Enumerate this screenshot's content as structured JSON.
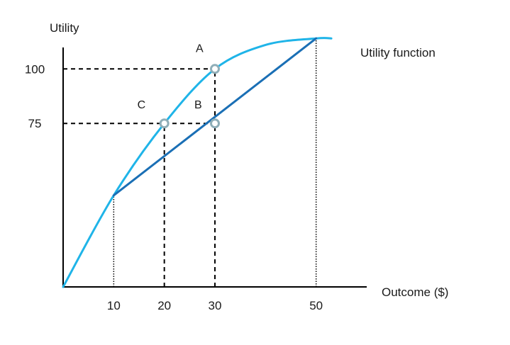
{
  "chart_data": {
    "type": "line",
    "title": "",
    "xlabel": "Outcome ($)",
    "ylabel": "Utility",
    "xlim": [
      0,
      60
    ],
    "ylim": [
      0,
      130
    ],
    "grid": false,
    "x_ticks": [
      {
        "value": 10,
        "label": "10"
      },
      {
        "value": 20,
        "label": "20"
      },
      {
        "value": 30,
        "label": "30"
      },
      {
        "value": 50,
        "label": "50"
      }
    ],
    "y_ticks": [
      {
        "value": 75,
        "label": "75"
      },
      {
        "value": 100,
        "label": "100"
      }
    ],
    "series": [
      {
        "name": "Utility function",
        "color": "#1fb4e8",
        "smooth": true,
        "x": [
          0,
          10,
          20,
          30,
          40,
          50,
          53
        ],
        "y": [
          0,
          42,
          75,
          100,
          111,
          114,
          114
        ]
      },
      {
        "name": "",
        "color": "#1a6fb5",
        "smooth": false,
        "x": [
          10,
          50
        ],
        "y": [
          42,
          114
        ]
      }
    ],
    "points": [
      {
        "label": "A",
        "x": 30,
        "y": 100
      },
      {
        "label": "B",
        "x": 30,
        "y": 75
      },
      {
        "label": "C",
        "x": 20,
        "y": 75
      }
    ],
    "guides": [
      {
        "style": "dashed",
        "from": [
          0,
          100
        ],
        "to": [
          30,
          100
        ]
      },
      {
        "style": "dashed",
        "from": [
          0,
          75
        ],
        "to": [
          30,
          75
        ]
      },
      {
        "style": "dashed",
        "from": [
          20,
          0
        ],
        "to": [
          20,
          75
        ]
      },
      {
        "style": "dashed",
        "from": [
          30,
          0
        ],
        "to": [
          30,
          100
        ]
      },
      {
        "style": "dotted",
        "from": [
          10,
          0
        ],
        "to": [
          10,
          42
        ]
      },
      {
        "style": "dotted",
        "from": [
          50,
          0
        ],
        "to": [
          50,
          114
        ]
      }
    ]
  }
}
